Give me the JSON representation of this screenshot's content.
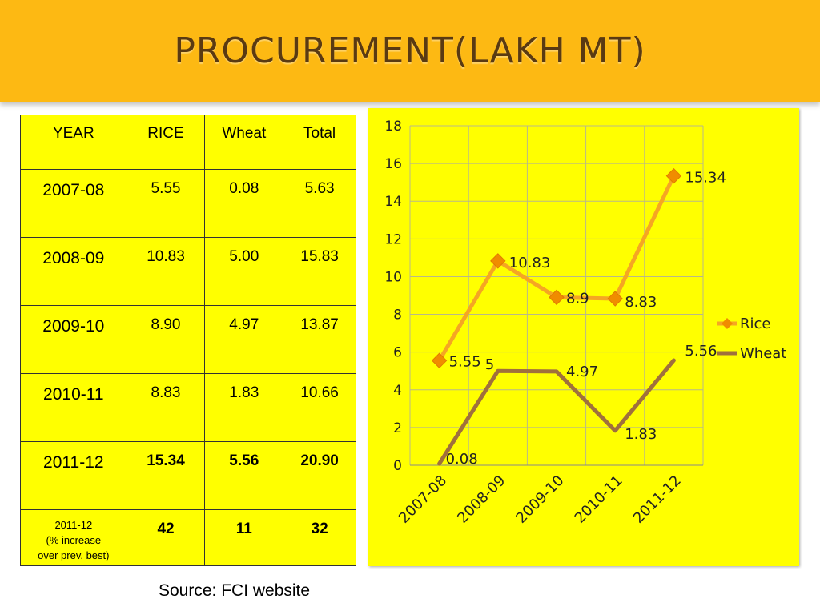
{
  "slide": {
    "title": "Procurement(lakh MT)",
    "source": "Source: FCI website"
  },
  "table": {
    "headers": [
      "YEAR",
      "RICE",
      "Wheat",
      "Total"
    ],
    "rows": [
      [
        "2007-08",
        "5.55",
        "0.08",
        "5.63"
      ],
      [
        "2008-09",
        "10.83",
        "5.00",
        "15.83"
      ],
      [
        "2009-10",
        "8.90",
        "4.97",
        "13.87"
      ],
      [
        "2010-11",
        "8.83",
        "1.83",
        "10.66"
      ],
      [
        "2011-12",
        "15.34",
        "5.56",
        "20.90"
      ]
    ],
    "pct_row": {
      "label_lines": [
        "2011-12",
        "(% increase",
        "over prev. best)"
      ],
      "values": [
        "42",
        "11",
        "32"
      ]
    }
  },
  "colors": {
    "banner": "#fdb913",
    "title": "#5a3a12",
    "background": "#ffff00",
    "rice": "#f5a623",
    "rice_marker": "#f08c00",
    "wheat": "#a0703c"
  },
  "chart_data": {
    "type": "line",
    "categories": [
      "2007-08",
      "2008-09",
      "2009-10",
      "2010-11",
      "2011-12"
    ],
    "series": [
      {
        "name": "Rice",
        "values": [
          5.55,
          10.83,
          8.9,
          8.83,
          15.34
        ],
        "labels": [
          "5.55",
          "10.83",
          "8.9",
          "8.83",
          "15.34"
        ],
        "marker": "diamond"
      },
      {
        "name": "Wheat",
        "values": [
          0.08,
          5,
          4.97,
          1.83,
          5.56
        ],
        "labels": [
          "0.08",
          "5",
          "4.97",
          "1.83",
          "5.56"
        ],
        "marker": "none"
      }
    ],
    "ylim": [
      0,
      18
    ],
    "yticks": [
      "0",
      "2",
      "4",
      "6",
      "8",
      "10",
      "12",
      "14",
      "16",
      "18"
    ],
    "grid": true,
    "legend": "right"
  }
}
